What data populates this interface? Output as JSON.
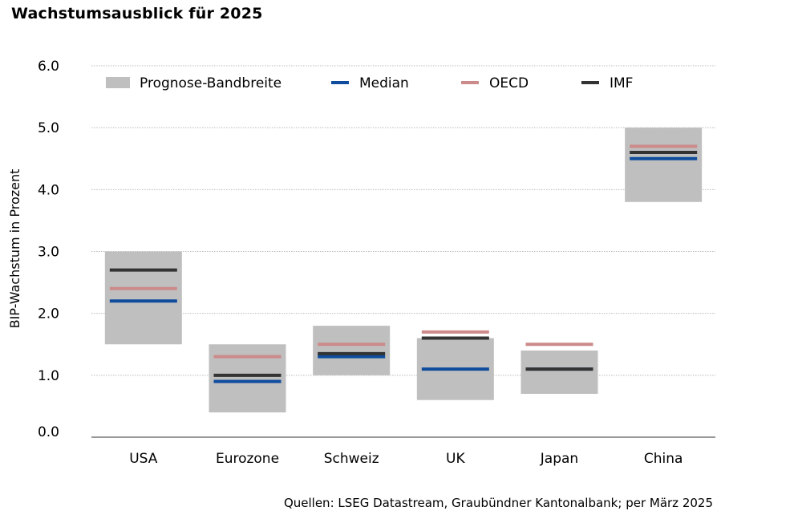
{
  "chart_data": {
    "type": "bar",
    "title": "Wachstumsausblick für 2025",
    "ylabel": "BIP-Wachstum in Prozent",
    "xlabel": "",
    "ylim": [
      0,
      6
    ],
    "yticks": [
      "0.0",
      "1.0",
      "2.0",
      "3.0",
      "4.0",
      "5.0",
      "6.0"
    ],
    "grid": true,
    "legend_position": "top",
    "categories": [
      "USA",
      "Eurozone",
      "Schweiz",
      "UK",
      "Japan",
      "China"
    ],
    "range": {
      "name": "Prognose-Bandbreite",
      "color": "#bfbfbf",
      "low": [
        1.5,
        0.4,
        1.0,
        0.6,
        0.7,
        3.8
      ],
      "high": [
        3.0,
        1.5,
        1.8,
        1.6,
        1.4,
        5.0
      ]
    },
    "series": [
      {
        "name": "Median",
        "color": "#0f4c9c",
        "values": [
          2.2,
          0.9,
          1.3,
          1.1,
          1.1,
          4.5
        ]
      },
      {
        "name": "OECD",
        "color": "#cc8a8a",
        "values": [
          2.4,
          1.3,
          1.5,
          1.7,
          1.5,
          4.7
        ]
      },
      {
        "name": "IMF",
        "color": "#333333",
        "values": [
          2.7,
          1.0,
          1.35,
          1.6,
          1.1,
          4.6
        ]
      }
    ]
  },
  "source": "Quellen: LSEG Datastream, Graubündner Kantonalbank; per März 2025"
}
